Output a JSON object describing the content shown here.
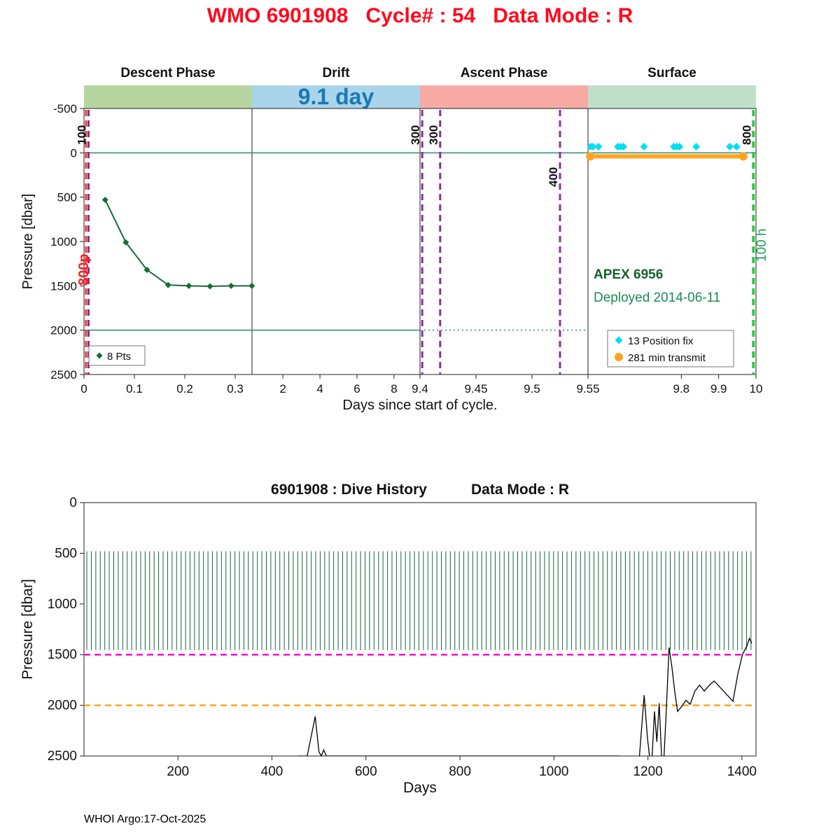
{
  "page": {
    "title": "WMO 6901908   Cycle# : 54   Data Mode : R",
    "title_color": "#ff0a1e",
    "footer": "WHOI Argo:17-Oct-2025"
  },
  "chart_data": [
    {
      "id": "cycle-timeline",
      "type": "line",
      "xlabel": "Days since start of cycle.",
      "ylabel": "Pressure [dbar]",
      "ylim": [
        -500,
        2500
      ],
      "yticks": [
        -500,
        0,
        500,
        1000,
        1500,
        2000,
        2500
      ],
      "panels": [
        {
          "label": "Descent Phase",
          "band_color": "#b6d5a0",
          "xlim": [
            0,
            0.3333
          ],
          "xticks": [
            0,
            0.1,
            0.2,
            0.3
          ]
        },
        {
          "label": "Drift",
          "band_color": "#a9d4ea",
          "xlim": [
            0.3333,
            9.4
          ],
          "xticks": [
            2,
            4,
            6,
            8
          ],
          "band_text": "9.1 day",
          "band_text_color": "#1878b4"
        },
        {
          "label": "Ascent Phase",
          "band_color": "#f7aaa4",
          "xlim": [
            9.4,
            9.55
          ],
          "xticks": [
            9.4,
            9.45,
            9.5,
            9.55
          ]
        },
        {
          "label": "Surface",
          "band_color": "#c0dfc9",
          "xlim": [
            9.55,
            10
          ],
          "xticks": [
            9.8,
            9.9,
            10
          ]
        }
      ],
      "descent_profile": {
        "legend": "8 Pts",
        "color": "#176b38",
        "x": [
          0.042,
          0.083,
          0.125,
          0.167,
          0.208,
          0.25,
          0.292,
          0.333
        ],
        "y": [
          530,
          1010,
          1320,
          1490,
          1500,
          1505,
          1500,
          1500
        ]
      },
      "hlines": [
        {
          "y": 0,
          "x0": 0,
          "x1": 10,
          "color": "#2e8b74",
          "style": "solid"
        },
        {
          "y": 2000,
          "x0": 0,
          "x1": 9.4,
          "color": "#2e8b74",
          "style": "solid"
        },
        {
          "y": 2000,
          "x0": 9.4,
          "x1": 9.55,
          "color": "#2e8b74",
          "style": "dotted"
        }
      ],
      "vlines": [
        {
          "x": 0.004,
          "color": "#e8413c",
          "style": "dashed",
          "label": "",
          "width": 3
        },
        {
          "x": 0.009,
          "color": "#8c2d9e",
          "style": "dashed",
          "label": "100",
          "width": 3
        },
        {
          "x": 9.402,
          "color": "#8c2d9e",
          "style": "dashed",
          "label": "300",
          "width": 3
        },
        {
          "x": 9.418,
          "color": "#8c2d9e",
          "style": "dashed",
          "label": "300",
          "width": 3
        },
        {
          "x": 9.525,
          "color": "#8c2d9e",
          "style": "dashed",
          "label": "400",
          "width": 3,
          "label_dy": 60
        },
        {
          "x": 9.993,
          "color": "#2ecc40",
          "style": "dashed",
          "label": "800",
          "width": 4
        }
      ],
      "side_labels": [
        {
          "text": "800p",
          "color": "#ff2020",
          "side": "left"
        },
        {
          "text": "100 h",
          "color": "#18a558",
          "side": "right"
        }
      ],
      "annotations": [
        {
          "text": "APEX 6956",
          "color": "#15602e",
          "bold": true,
          "x": 9.565,
          "y": 1420
        },
        {
          "text": "Deployed 2014-06-11",
          "color": "#1b8a55",
          "bold": false,
          "x": 9.565,
          "y": 1680
        }
      ],
      "position_fixes": {
        "legend": "13 Position fix",
        "color": "#00e0f2",
        "y": -70,
        "x": [
          9.557,
          9.563,
          9.578,
          9.63,
          9.637,
          9.645,
          9.7,
          9.78,
          9.787,
          9.795,
          9.84,
          9.93,
          9.948
        ]
      },
      "transmit": {
        "legend": "281 min transmit",
        "color": "#ffa41e",
        "y": 40,
        "x0": 9.556,
        "x1": 9.966
      }
    },
    {
      "id": "dive-history",
      "type": "line",
      "title": "6901908 : Dive History      Data Mode : R",
      "xlabel": "Days",
      "ylabel": "Pressure [dbar]",
      "xlim": [
        0,
        1430
      ],
      "xticks": [
        200,
        400,
        600,
        800,
        1000,
        1200,
        1400
      ],
      "ylim": [
        0,
        2500
      ],
      "yticks": [
        0,
        500,
        1000,
        1500,
        2000,
        2500
      ],
      "dive_bars": {
        "color": "#17653a",
        "first_day": 6,
        "spacing_days": 9.55,
        "count": 149,
        "top_dbar": 480,
        "bottom_dbar": 1455
      },
      "park_depth_line": {
        "y": 1500,
        "color": "#ff00cc",
        "style": "dashed"
      },
      "max_depth_line": {
        "y": 2000,
        "color": "#ffa41e",
        "style": "dashed"
      },
      "surface_trace": {
        "color": "#000000",
        "points": [
          [
            455,
            2500
          ],
          [
            475,
            2500
          ],
          [
            492,
            2110
          ],
          [
            500,
            2460
          ],
          [
            505,
            2500
          ],
          [
            510,
            2440
          ],
          [
            516,
            2500
          ],
          [
            1140,
            2500
          ],
          [
            1150,
            2530
          ],
          [
            1158,
            2500
          ],
          [
            1168,
            2530
          ],
          [
            1182,
            2500
          ],
          [
            1192,
            1900
          ],
          [
            1199,
            2320
          ],
          [
            1204,
            2530
          ],
          [
            1209,
            2500
          ],
          [
            1214,
            2060
          ],
          [
            1219,
            2360
          ],
          [
            1224,
            1980
          ],
          [
            1229,
            2500
          ],
          [
            1234,
            2530
          ],
          [
            1239,
            2060
          ],
          [
            1245,
            1430
          ],
          [
            1251,
            1620
          ],
          [
            1257,
            1860
          ],
          [
            1263,
            2060
          ],
          [
            1272,
            2010
          ],
          [
            1281,
            1950
          ],
          [
            1290,
            1990
          ],
          [
            1300,
            1860
          ],
          [
            1310,
            1800
          ],
          [
            1320,
            1860
          ],
          [
            1331,
            1800
          ],
          [
            1341,
            1760
          ],
          [
            1351,
            1810
          ],
          [
            1361,
            1860
          ],
          [
            1371,
            1910
          ],
          [
            1381,
            1960
          ],
          [
            1391,
            1700
          ],
          [
            1401,
            1500
          ],
          [
            1411,
            1410
          ],
          [
            1416,
            1340
          ],
          [
            1421,
            1390
          ]
        ]
      }
    }
  ]
}
